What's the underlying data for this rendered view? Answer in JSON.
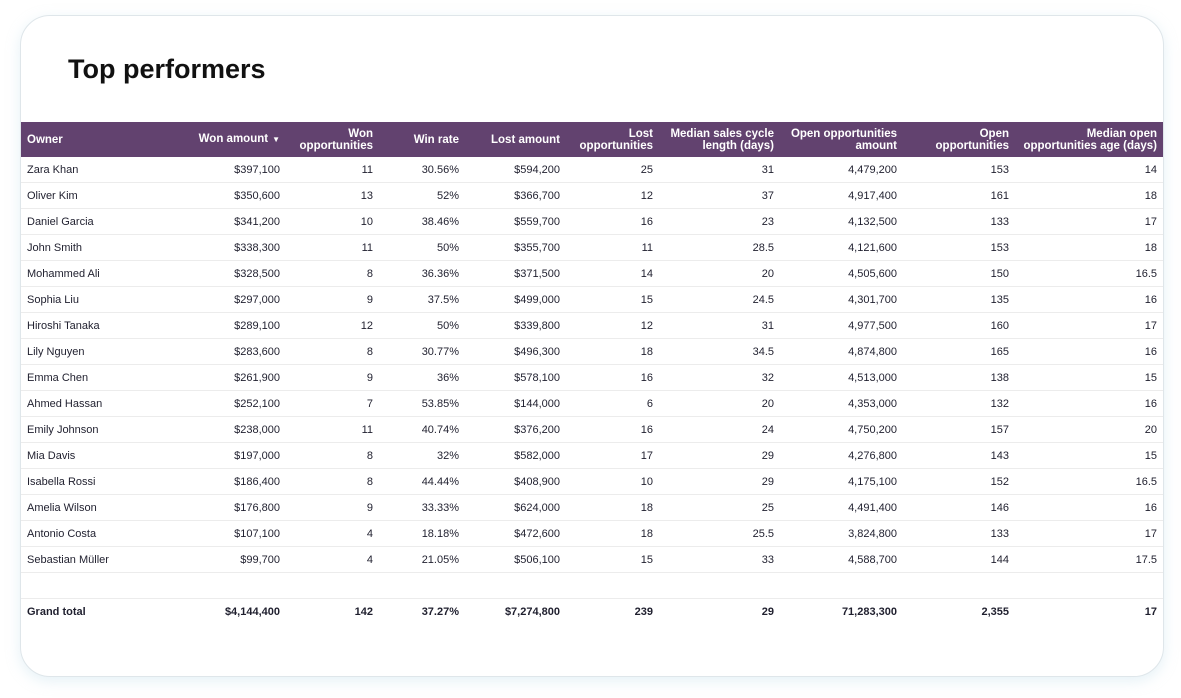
{
  "title": "Top performers",
  "header_color": "#62426f",
  "columns": [
    "Owner",
    "Won amount",
    "Won opportunities",
    "Win rate",
    "Lost amount",
    "Lost opportunities",
    "Median sales cycle length (days)",
    "Open opportunities amount",
    "Open opportunities",
    "Median open opportunities age (days)"
  ],
  "sort": {
    "column": "Won amount",
    "direction": "descending",
    "icon": "caret-down-icon",
    "glyph": "▼"
  },
  "rows": [
    [
      "Zara Khan",
      "$397,100",
      "11",
      "30.56%",
      "$594,200",
      "25",
      "31",
      "4,479,200",
      "153",
      "14"
    ],
    [
      "Oliver Kim",
      "$350,600",
      "13",
      "52%",
      "$366,700",
      "12",
      "37",
      "4,917,400",
      "161",
      "18"
    ],
    [
      "Daniel Garcia",
      "$341,200",
      "10",
      "38.46%",
      "$559,700",
      "16",
      "23",
      "4,132,500",
      "133",
      "17"
    ],
    [
      "John Smith",
      "$338,300",
      "11",
      "50%",
      "$355,700",
      "11",
      "28.5",
      "4,121,600",
      "153",
      "18"
    ],
    [
      "Mohammed Ali",
      "$328,500",
      "8",
      "36.36%",
      "$371,500",
      "14",
      "20",
      "4,505,600",
      "150",
      "16.5"
    ],
    [
      "Sophia Liu",
      "$297,000",
      "9",
      "37.5%",
      "$499,000",
      "15",
      "24.5",
      "4,301,700",
      "135",
      "16"
    ],
    [
      "Hiroshi Tanaka",
      "$289,100",
      "12",
      "50%",
      "$339,800",
      "12",
      "31",
      "4,977,500",
      "160",
      "17"
    ],
    [
      "Lily Nguyen",
      "$283,600",
      "8",
      "30.77%",
      "$496,300",
      "18",
      "34.5",
      "4,874,800",
      "165",
      "16"
    ],
    [
      "Emma Chen",
      "$261,900",
      "9",
      "36%",
      "$578,100",
      "16",
      "32",
      "4,513,000",
      "138",
      "15"
    ],
    [
      "Ahmed Hassan",
      "$252,100",
      "7",
      "53.85%",
      "$144,000",
      "6",
      "20",
      "4,353,000",
      "132",
      "16"
    ],
    [
      "Emily Johnson",
      "$238,000",
      "11",
      "40.74%",
      "$376,200",
      "16",
      "24",
      "4,750,200",
      "157",
      "20"
    ],
    [
      "Mia Davis",
      "$197,000",
      "8",
      "32%",
      "$582,000",
      "17",
      "29",
      "4,276,800",
      "143",
      "15"
    ],
    [
      "Isabella Rossi",
      "$186,400",
      "8",
      "44.44%",
      "$408,900",
      "10",
      "29",
      "4,175,100",
      "152",
      "16.5"
    ],
    [
      "Amelia Wilson",
      "$176,800",
      "9",
      "33.33%",
      "$624,000",
      "18",
      "25",
      "4,491,400",
      "146",
      "16"
    ],
    [
      "Antonio Costa",
      "$107,100",
      "4",
      "18.18%",
      "$472,600",
      "18",
      "25.5",
      "3,824,800",
      "133",
      "17"
    ],
    [
      "Sebastian Müller",
      "$99,700",
      "4",
      "21.05%",
      "$506,100",
      "15",
      "33",
      "4,588,700",
      "144",
      "17.5"
    ]
  ],
  "grand_total": [
    "Grand total",
    "$4,144,400",
    "142",
    "37.27%",
    "$7,274,800",
    "239",
    "29",
    "71,283,300",
    "2,355",
    "17"
  ]
}
